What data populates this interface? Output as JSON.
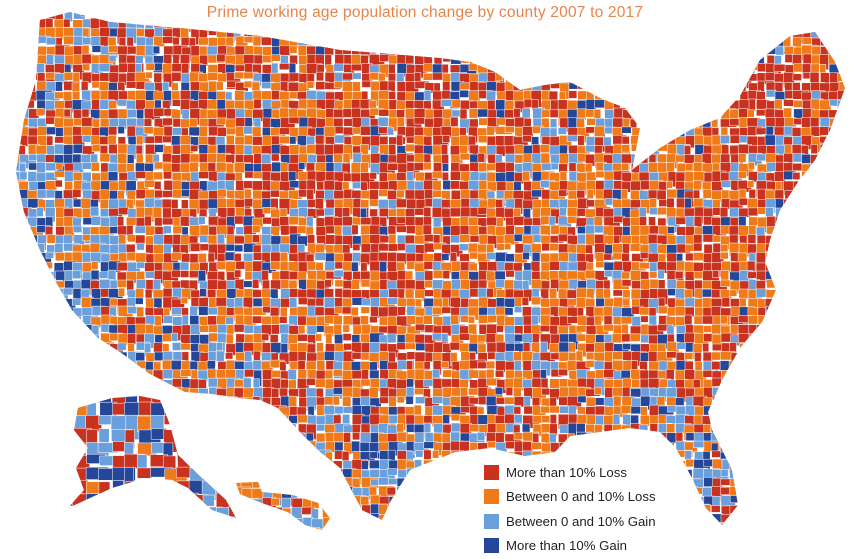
{
  "title": "Prime working age population change by county 2007 to 2017",
  "colors": {
    "loss_over_10": "#c9321f",
    "loss_0_10": "#ef7a1a",
    "gain_0_10": "#6a9fdc",
    "gain_over_10": "#25479a"
  },
  "legend": [
    {
      "label": "More than 10% Loss",
      "color": "#c9321f"
    },
    {
      "label": "Between 0 and 10% Loss",
      "color": "#ef7a1a"
    },
    {
      "label": "Between 0 and 10% Gain",
      "color": "#6a9fdc"
    },
    {
      "label": "More than 10% Gain",
      "color": "#25479a"
    }
  ]
}
